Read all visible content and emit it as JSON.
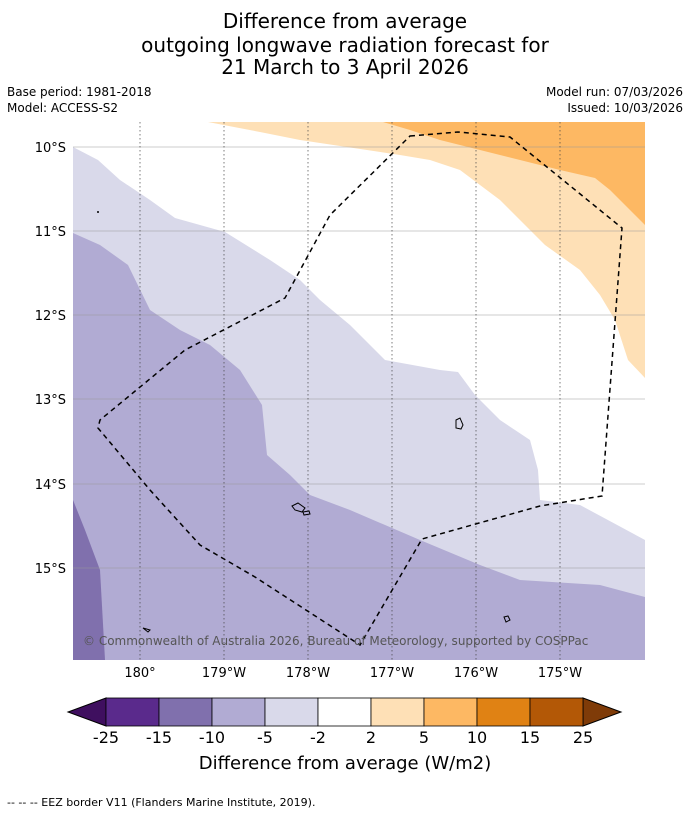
{
  "title": {
    "line1": "Difference from average",
    "line2": "outgoing longwave radiation forecast for",
    "line3": "21 March to 3 April 2026"
  },
  "meta": {
    "base_period": "Base period: 1981-2018",
    "model": "Model: ACCESS-S2",
    "model_run": "Model run: 07/03/2026",
    "issued": "Issued: 10/03/2026"
  },
  "map": {
    "lat_labels": [
      "10°S",
      "11°S",
      "12°S",
      "13°S",
      "14°S",
      "15°S"
    ],
    "lon_labels": [
      "180°",
      "179°W",
      "178°W",
      "177°W",
      "176°W",
      "175°W"
    ],
    "copyright": "© Commonwealth of Australia 2026, Bureau of Meteorology, supported by COSPPac"
  },
  "colorbar": {
    "ticks": [
      "-25",
      "-15",
      "-10",
      "-5",
      "-2",
      "2",
      "5",
      "10",
      "15",
      "25"
    ],
    "colors": [
      "#5a2a8c",
      "#8070ad",
      "#b1abd3",
      "#d9d9ea",
      "#ffffff",
      "#fee0b6",
      "#fdb863",
      "#e08214",
      "#b35806"
    ],
    "under_color": "#3f0f5f",
    "over_color": "#7f3b08",
    "label": "Difference from average (W/m2)"
  },
  "footer": "--  --  -- EEZ border V11 (Flanders Marine Institute, 2019)."
}
